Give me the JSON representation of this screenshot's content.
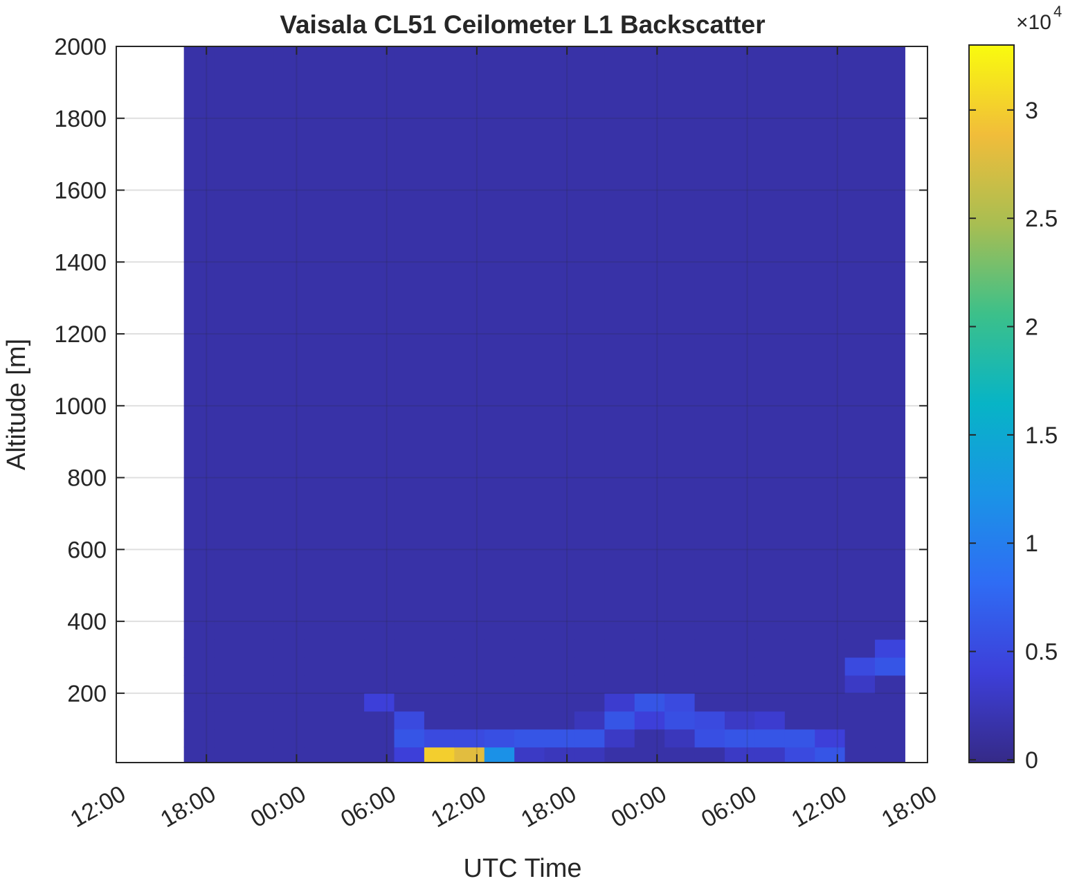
{
  "chart_data": {
    "type": "heatmap",
    "title": "Vaisala CL51 Ceilometer L1 Backscatter",
    "xlabel": "UTC Time",
    "ylabel": "Altitude [m]",
    "xlim": [
      12,
      66
    ],
    "xticks": [
      {
        "value": 12,
        "label": "12:00"
      },
      {
        "value": 18,
        "label": "18:00"
      },
      {
        "value": 24,
        "label": "00:00"
      },
      {
        "value": 30,
        "label": "06:00"
      },
      {
        "value": 36,
        "label": "12:00"
      },
      {
        "value": 42,
        "label": "18:00"
      },
      {
        "value": 48,
        "label": "00:00"
      },
      {
        "value": 54,
        "label": "06:00"
      },
      {
        "value": 60,
        "label": "12:00"
      },
      {
        "value": 66,
        "label": "18:00"
      }
    ],
    "ylim": [
      7,
      2000
    ],
    "yticks": [
      200,
      400,
      600,
      800,
      1000,
      1200,
      1400,
      1600,
      1800,
      2000
    ],
    "grid": true,
    "x_edges": [
      16.5,
      18.5,
      20.5,
      22.5,
      24.5,
      26.5,
      28.5,
      30.5,
      32.5,
      34.5,
      36.5,
      38.5,
      40.5,
      42.5,
      44.5,
      46.5,
      48.5,
      50.5,
      52.5,
      54.5,
      56.5,
      58.5,
      60.5,
      62.5,
      64.5
    ],
    "y_edges": [
      7,
      50,
      100,
      150,
      200,
      250,
      300,
      350,
      2000
    ],
    "z": [
      [
        1500,
        1500,
        1500,
        1500,
        1500,
        1500,
        1500,
        4000,
        30000,
        28000,
        12000,
        3000,
        2500,
        2500,
        1500,
        1500,
        1500,
        1500,
        3000,
        3000,
        5000,
        6000,
        1500,
        1500
      ],
      [
        1500,
        1500,
        1500,
        1500,
        1500,
        1500,
        1500,
        6000,
        5000,
        5000,
        5500,
        6000,
        6000,
        6000,
        3000,
        1500,
        2500,
        5500,
        6000,
        6000,
        6000,
        4000,
        1500,
        1500
      ],
      [
        1500,
        1500,
        1500,
        1500,
        1500,
        1500,
        1500,
        5000,
        1500,
        1500,
        1500,
        1500,
        1500,
        2500,
        6000,
        4000,
        5500,
        5000,
        3000,
        3500,
        1500,
        1500,
        1500,
        1500
      ],
      [
        1500,
        1500,
        1500,
        1500,
        1500,
        1500,
        4000,
        1500,
        1500,
        1500,
        1500,
        1500,
        1500,
        1500,
        3500,
        6000,
        5000,
        1500,
        1500,
        1500,
        1500,
        1500,
        1500,
        1500
      ],
      [
        1500,
        1500,
        1500,
        1500,
        1500,
        1500,
        1500,
        1500,
        1500,
        1500,
        1500,
        1500,
        1500,
        1500,
        1500,
        1500,
        1500,
        1500,
        1500,
        1500,
        1500,
        1500,
        3000,
        1500
      ],
      [
        1500,
        1500,
        1500,
        1500,
        1500,
        1500,
        1500,
        1500,
        1500,
        1500,
        1500,
        1500,
        1500,
        1500,
        1500,
        1500,
        1500,
        1500,
        1500,
        1500,
        1500,
        1500,
        5000,
        6000
      ],
      [
        1500,
        1500,
        1500,
        1500,
        1500,
        1500,
        1500,
        1500,
        1500,
        1500,
        1500,
        1500,
        1500,
        1500,
        1500,
        1500,
        1500,
        1500,
        1500,
        1500,
        1500,
        1500,
        1500,
        4500
      ],
      [
        1500,
        1500,
        1500,
        1500,
        1500,
        1500,
        1500,
        1500,
        1500,
        1500,
        1500,
        1500,
        1500,
        1500,
        1500,
        1500,
        1500,
        1500,
        1500,
        1500,
        1500,
        1500,
        1500,
        1500
      ]
    ],
    "colormap": [
      "#352a87",
      "#3d3fd9",
      "#2f6cf4",
      "#1a94e6",
      "#07b4c6",
      "#3cc08a",
      "#a8be52",
      "#f1bd3a",
      "#f9fb0e"
    ],
    "clim": [
      -130,
      33000
    ],
    "colorbar_ticks": [
      {
        "value": 0,
        "label": "0"
      },
      {
        "value": 5000,
        "label": "0.5"
      },
      {
        "value": 10000,
        "label": "1"
      },
      {
        "value": 15000,
        "label": "1.5"
      },
      {
        "value": 20000,
        "label": "2"
      },
      {
        "value": 25000,
        "label": "2.5"
      },
      {
        "value": 30000,
        "label": "3"
      }
    ],
    "colorbar_multiplier": {
      "base": "×10",
      "exponent": "4"
    }
  }
}
